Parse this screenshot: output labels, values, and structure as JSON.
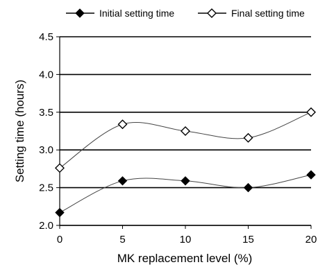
{
  "chart_data": {
    "type": "line",
    "x": [
      0,
      5,
      10,
      15,
      20
    ],
    "series": [
      {
        "name": "Initial setting time",
        "values": [
          2.17,
          2.59,
          2.59,
          2.5,
          2.67
        ],
        "marker": "filled-diamond"
      },
      {
        "name": "Final setting time",
        "values": [
          2.76,
          3.34,
          3.25,
          3.16,
          3.5
        ],
        "marker": "open-diamond"
      }
    ],
    "xlabel": "MK replacement level (%)",
    "ylabel": "Setting time (hours)",
    "xlim": [
      0,
      20
    ],
    "ylim": [
      2.0,
      4.5
    ],
    "xticks": [
      "0",
      "5",
      "10",
      "15",
      "20"
    ],
    "yticks": [
      "2.0",
      "2.5",
      "3.0",
      "3.5",
      "4.0",
      "4.5"
    ],
    "grid": "horizontal",
    "legend_position": "top",
    "smooth": true
  }
}
